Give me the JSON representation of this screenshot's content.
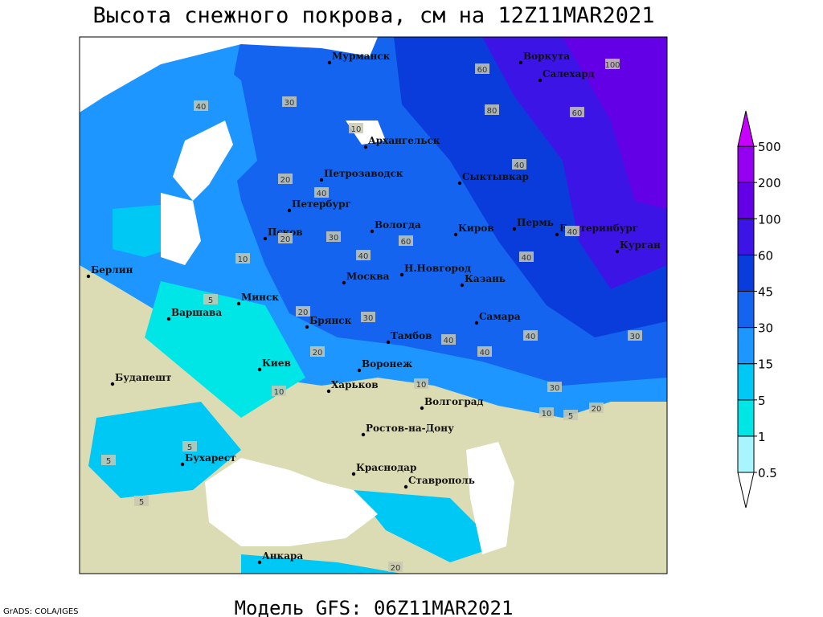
{
  "title": "Высота снежного покрова, см на 12Z11MAR2021",
  "footer": "Модель GFS: 06Z11MAR2021",
  "credit": "GrADS: COLA/IGES",
  "legend": {
    "levels": [
      0.5,
      1,
      5,
      15,
      30,
      45,
      60,
      100,
      200,
      500
    ],
    "colors": [
      "#ffffff",
      "#a8f4ff",
      "#00e6e6",
      "#00c8f5",
      "#1e96ff",
      "#1464f0",
      "#0a3cdc",
      "#3c14e6",
      "#6400e6",
      "#9600f0",
      "#c800ff"
    ]
  },
  "cities": [
    "Мурманск",
    "Воркута",
    "Салехард",
    "Архангельск",
    "Петрозаводск",
    "Сыктывкар",
    "Петербург",
    "Вологда",
    "Киров",
    "Пермь",
    "Екатеринбург",
    "Курган",
    "Псков",
    "Москва",
    "Н.Новгород",
    "Казань",
    "Берлин",
    "Варшава",
    "Минск",
    "Брянск",
    "Тамбов",
    "Самара",
    "Киев",
    "Воронеж",
    "Харьков",
    "Волгоград",
    "Будапешт",
    "Ростов-на-Дону",
    "Бухарест",
    "Краснодар",
    "Ставрополь",
    "Анкара"
  ],
  "contour_labels": [
    100,
    60,
    80,
    60,
    40,
    40,
    30,
    10,
    40,
    20,
    20,
    30,
    40,
    60,
    40,
    40,
    40,
    10,
    5,
    20,
    30,
    40,
    30,
    40,
    20,
    10,
    20,
    10,
    5,
    5,
    5,
    5,
    10,
    30,
    20
  ]
}
